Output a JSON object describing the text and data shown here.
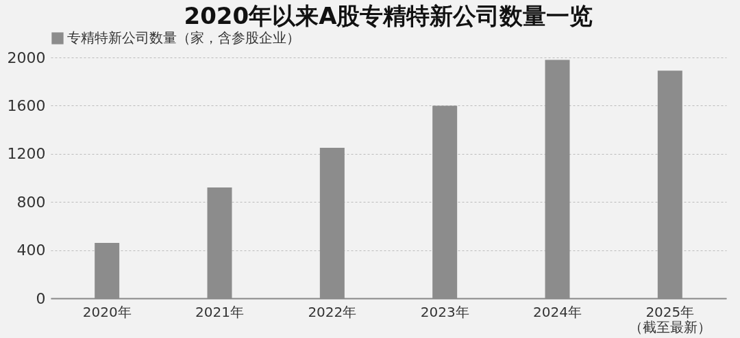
{
  "chart_data": {
    "type": "bar",
    "title": "2020年以来A股专精特新公司数量一览",
    "categories": [
      "2020年",
      "2021年",
      "2022年",
      "2023年",
      "2024年",
      "2025年（截至最新）"
    ],
    "series": [
      {
        "name": "专精特新公司数量（家，含参股企业）",
        "color": "#8c8c8c",
        "values": [
          460,
          920,
          1250,
          1600,
          1980,
          1890
        ]
      }
    ],
    "ylim": [
      0,
      2000
    ],
    "yticks": [
      0,
      400,
      800,
      1200,
      1600,
      2000
    ],
    "grid": "y",
    "legend": "top"
  }
}
